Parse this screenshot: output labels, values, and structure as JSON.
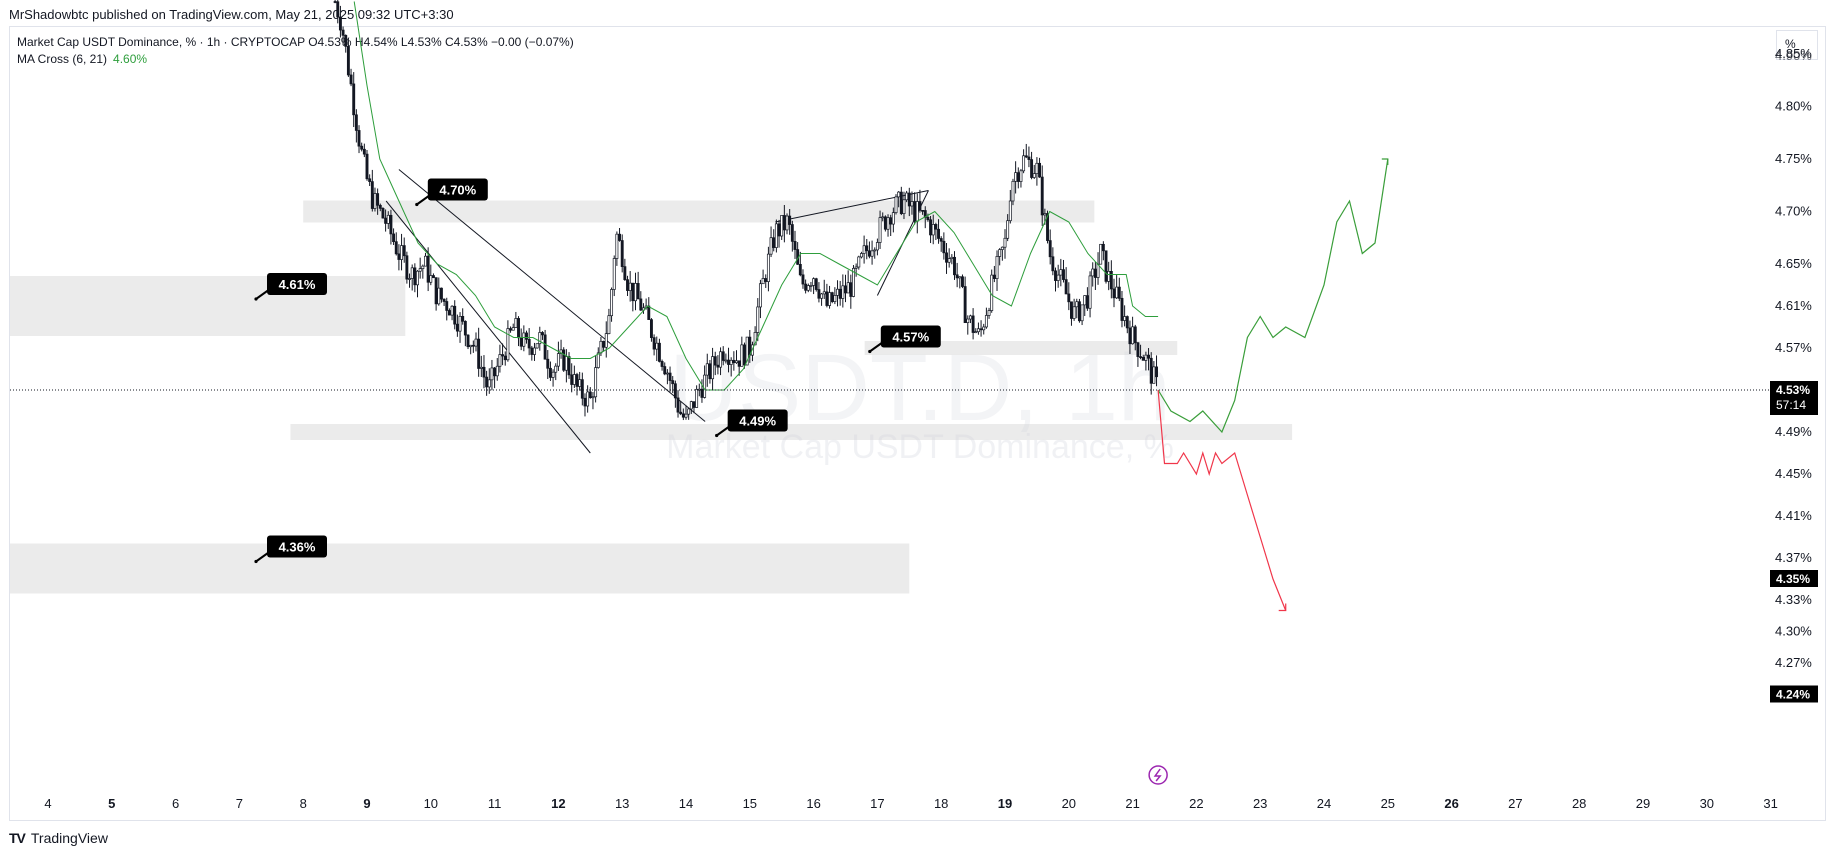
{
  "header": {
    "publish_line": "MrShadowbtc published on TradingView.com, May 21, 2025 09:32 UTC+3:30"
  },
  "legend": {
    "symbol_line": "Market Cap USDT Dominance, % · 1h · CRYPTOCAP  O4.53%  H4.54%  L4.53%  C4.53%  −0.00 (−0.07%)",
    "indicator_name": "MA Cross (6, 21)",
    "indicator_value": "4.60%"
  },
  "scale_button": "%",
  "watermark": {
    "symbol": "USDT.D, 1h",
    "name": "Market Cap USDT Dominance, %"
  },
  "footer": {
    "brand": "TradingView",
    "logo_mark": "TV"
  },
  "colors": {
    "candle": "#131722",
    "ma_line": "#2e9e3c",
    "bull_path": "#3a9e3a",
    "bear_path": "#f0364a",
    "zone": "#e8e8e8",
    "label_bg": "#000000",
    "label_text": "#ffffff",
    "icon_ring": "#9c27b0"
  },
  "chart_data": {
    "type": "line",
    "title": "Market Cap USDT Dominance, % · 1h · CRYPTOCAP",
    "y_axis": {
      "ticks": [
        "4.85%",
        "4.80%",
        "4.75%",
        "4.70%",
        "4.65%",
        "4.61%",
        "4.57%",
        "4.49%",
        "4.45%",
        "4.41%",
        "4.37%",
        "4.33%",
        "4.30%",
        "4.27%"
      ],
      "partial_top": "4.90%",
      "range": [
        4.22,
        4.92
      ]
    },
    "price_badges": [
      {
        "label": "4.53%",
        "sub": "57:14",
        "value": 4.53
      },
      {
        "label": "4.35%",
        "value": 4.35
      },
      {
        "label": "4.24%",
        "value": 4.24
      }
    ],
    "x_axis": {
      "labels": [
        "4",
        "5",
        "6",
        "7",
        "8",
        "9",
        "10",
        "11",
        "12",
        "13",
        "14",
        "15",
        "16",
        "17",
        "18",
        "19",
        "20",
        "21",
        "22",
        "23",
        "24",
        "25",
        "26",
        "27",
        "28",
        "29",
        "30",
        "31"
      ],
      "bold": [
        "5",
        "9",
        "12",
        "19",
        "26"
      ],
      "unit": "day (May 2025)"
    },
    "zones": [
      {
        "level": "4.70%",
        "value": 4.7,
        "from_day": 8.0,
        "to_day": 20.4
      },
      {
        "level": "4.61%",
        "value": 4.61,
        "from_day": 3.4,
        "to_day": 9.6
      },
      {
        "level": "4.57%",
        "value": 4.57,
        "from_day": 16.8,
        "to_day": 21.7
      },
      {
        "level": "4.49%",
        "value": 4.49,
        "from_day": 7.8,
        "to_day": 23.5
      },
      {
        "level": "4.36%",
        "value": 4.36,
        "from_day": 3.4,
        "to_day": 17.5
      }
    ],
    "series": [
      {
        "name": "Market Cap USDT Dominance, %",
        "kind": "close_approx",
        "x": [
          8.5,
          8.6,
          8.8,
          8.9,
          9.0,
          9.1,
          9.3,
          9.5,
          9.7,
          9.9,
          10.1,
          10.3,
          10.5,
          10.7,
          10.9,
          11.1,
          11.3,
          11.5,
          11.7,
          11.9,
          12.1,
          12.3,
          12.5,
          12.6,
          12.8,
          12.9,
          13.0,
          13.1,
          13.3,
          13.5,
          13.7,
          13.9,
          14.0,
          14.2,
          14.4,
          14.6,
          14.8,
          15.0,
          15.2,
          15.4,
          15.6,
          15.8,
          16.0,
          16.2,
          16.4,
          16.6,
          16.8,
          17.0,
          17.2,
          17.4,
          17.6,
          17.8,
          18.0,
          18.2,
          18.4,
          18.6,
          18.8,
          19.0,
          19.1,
          19.3,
          19.5,
          19.6,
          19.7,
          19.9,
          20.1,
          20.3,
          20.5,
          20.6,
          20.8,
          21.0,
          21.2,
          21.4
        ],
        "y": [
          4.9,
          4.88,
          4.8,
          4.76,
          4.73,
          4.71,
          4.69,
          4.66,
          4.64,
          4.65,
          4.62,
          4.61,
          4.59,
          4.57,
          4.53,
          4.56,
          4.59,
          4.57,
          4.58,
          4.55,
          4.56,
          4.53,
          4.52,
          4.55,
          4.6,
          4.68,
          4.66,
          4.63,
          4.61,
          4.58,
          4.55,
          4.51,
          4.5,
          4.53,
          4.55,
          4.57,
          4.56,
          4.57,
          4.63,
          4.68,
          4.69,
          4.63,
          4.64,
          4.61,
          4.62,
          4.63,
          4.66,
          4.68,
          4.7,
          4.71,
          4.7,
          4.69,
          4.67,
          4.65,
          4.6,
          4.58,
          4.63,
          4.67,
          4.73,
          4.75,
          4.74,
          4.7,
          4.66,
          4.63,
          4.6,
          4.62,
          4.66,
          4.64,
          4.61,
          4.58,
          4.56,
          4.53
        ]
      },
      {
        "name": "MA Cross (6, 21)",
        "x": [
          8.8,
          9.0,
          9.2,
          9.5,
          9.8,
          10.1,
          10.4,
          10.7,
          11.0,
          11.3,
          11.6,
          11.9,
          12.2,
          12.5,
          12.8,
          13.1,
          13.4,
          13.7,
          14.0,
          14.3,
          14.6,
          14.9,
          15.2,
          15.5,
          15.8,
          16.1,
          16.4,
          16.7,
          17.0,
          17.3,
          17.6,
          17.9,
          18.2,
          18.5,
          18.8,
          19.1,
          19.4,
          19.7,
          20.0,
          20.3,
          20.6,
          20.9,
          21.0,
          21.2,
          21.4
        ],
        "y": [
          4.9,
          4.82,
          4.75,
          4.71,
          4.67,
          4.65,
          4.64,
          4.62,
          4.59,
          4.58,
          4.58,
          4.57,
          4.56,
          4.56,
          4.57,
          4.59,
          4.61,
          4.6,
          4.56,
          4.53,
          4.53,
          4.55,
          4.59,
          4.63,
          4.66,
          4.66,
          4.65,
          4.64,
          4.63,
          4.66,
          4.69,
          4.7,
          4.68,
          4.65,
          4.62,
          4.61,
          4.66,
          4.7,
          4.69,
          4.66,
          4.64,
          4.64,
          4.61,
          4.6,
          4.6
        ]
      },
      {
        "name": "bull projection",
        "x": [
          21.4,
          21.6,
          21.9,
          22.1,
          22.4,
          22.6,
          22.8,
          23.0,
          23.2,
          23.4,
          23.7,
          24.0,
          24.2,
          24.4,
          24.6,
          24.8,
          25.0
        ],
        "y": [
          4.53,
          4.51,
          4.5,
          4.51,
          4.49,
          4.52,
          4.58,
          4.6,
          4.58,
          4.59,
          4.58,
          4.63,
          4.69,
          4.71,
          4.66,
          4.67,
          4.75
        ]
      },
      {
        "name": "bear projection",
        "x": [
          21.4,
          21.5,
          21.7,
          21.8,
          22.0,
          22.1,
          22.2,
          22.3,
          22.4,
          22.6,
          22.8,
          23.0,
          23.2,
          23.4
        ],
        "y": [
          4.53,
          4.46,
          4.46,
          4.47,
          4.45,
          4.47,
          4.45,
          4.47,
          4.46,
          4.47,
          4.43,
          4.39,
          4.35,
          4.32
        ]
      }
    ],
    "grid": false,
    "legend_position": "top-left"
  }
}
